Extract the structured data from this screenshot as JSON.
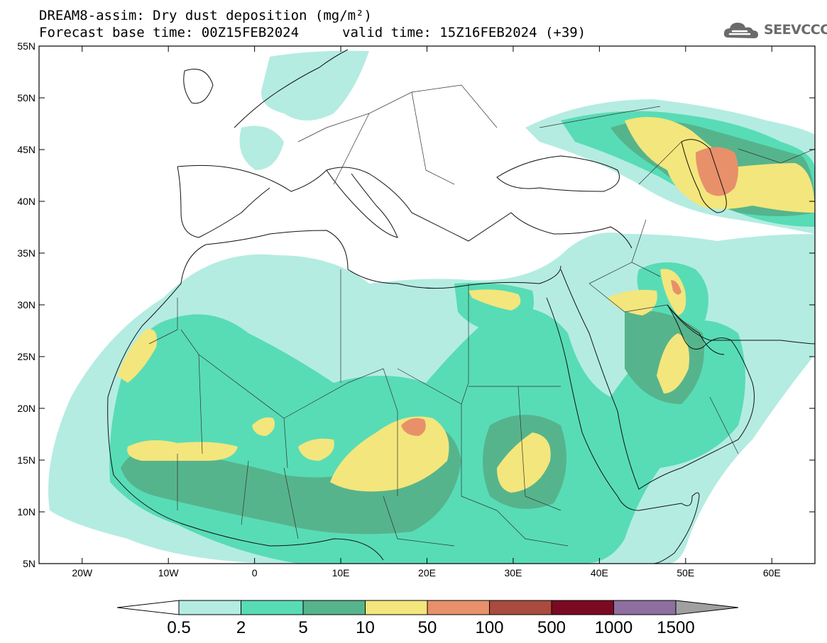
{
  "header": {
    "title": "DREAM8-assim: Dry dust deposition (mg/m²)",
    "base_time": "Forecast base time: 00Z15FEB2024",
    "valid_time": "valid time: 15Z16FEB2024 (+39)",
    "logo_text": "SEEVCCC",
    "logo_icon": "cloud-logo-icon"
  },
  "map": {
    "lon_range": [
      -25,
      65
    ],
    "lat_range": [
      5,
      55
    ],
    "lat_ticks": [
      "55N",
      "50N",
      "45N",
      "40N",
      "35N",
      "30N",
      "25N",
      "20N",
      "15N",
      "10N",
      "5N"
    ],
    "lon_ticks": [
      "20W",
      "10W",
      "0",
      "10E",
      "20E",
      "30E",
      "40E",
      "50E",
      "60E"
    ]
  },
  "colorbar": {
    "labels": [
      "0.5",
      "2",
      "5",
      "10",
      "50",
      "100",
      "500",
      "1000",
      "1500"
    ],
    "colors": [
      "#ffffff",
      "#b4ece2",
      "#58dcb6",
      "#56b48c",
      "#f3e67c",
      "#e8906a",
      "#a94b3e",
      "#7a0a22",
      "#8e6fa0",
      "#a0a0a0"
    ]
  }
}
